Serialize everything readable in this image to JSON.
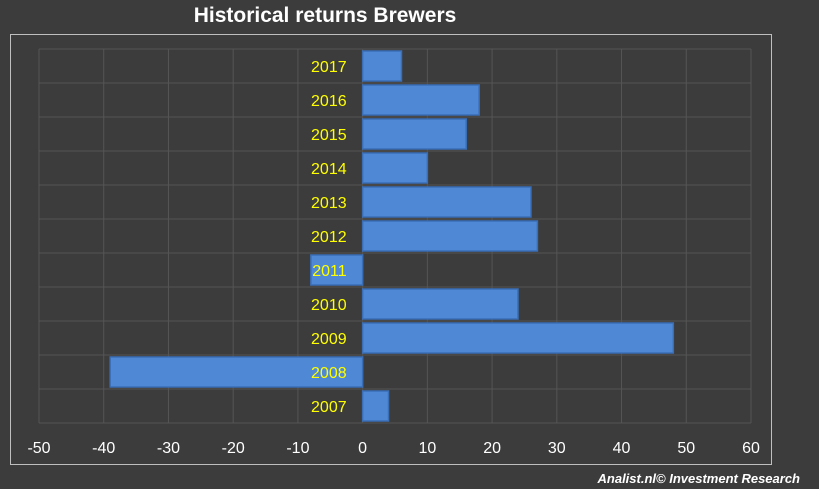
{
  "title": "Historical returns Brewers",
  "footer": "Analist.nl© Investment Research",
  "chart_data": {
    "type": "bar",
    "orientation": "horizontal",
    "title": "Historical returns Brewers",
    "xlabel": "",
    "ylabel": "",
    "categories": [
      "2007",
      "2008",
      "2009",
      "2010",
      "2011",
      "2012",
      "2013",
      "2014",
      "2015",
      "2016",
      "2017"
    ],
    "values": [
      4,
      -39,
      48,
      24,
      -8,
      27,
      26,
      10,
      16,
      18,
      6
    ],
    "xlim": [
      -50,
      60
    ],
    "xticks": [
      -50,
      -40,
      -30,
      -20,
      -10,
      0,
      10,
      20,
      30,
      40,
      50,
      60
    ],
    "grid": true,
    "legend": "none",
    "colors": {
      "background": "#3c3c3c",
      "bar": "#4f88d4",
      "bar_edge": "#3a6fb8",
      "grid": "#555555",
      "category_label": "#ffff00",
      "tick_label": "#ffffff",
      "title": "#ffffff"
    }
  }
}
